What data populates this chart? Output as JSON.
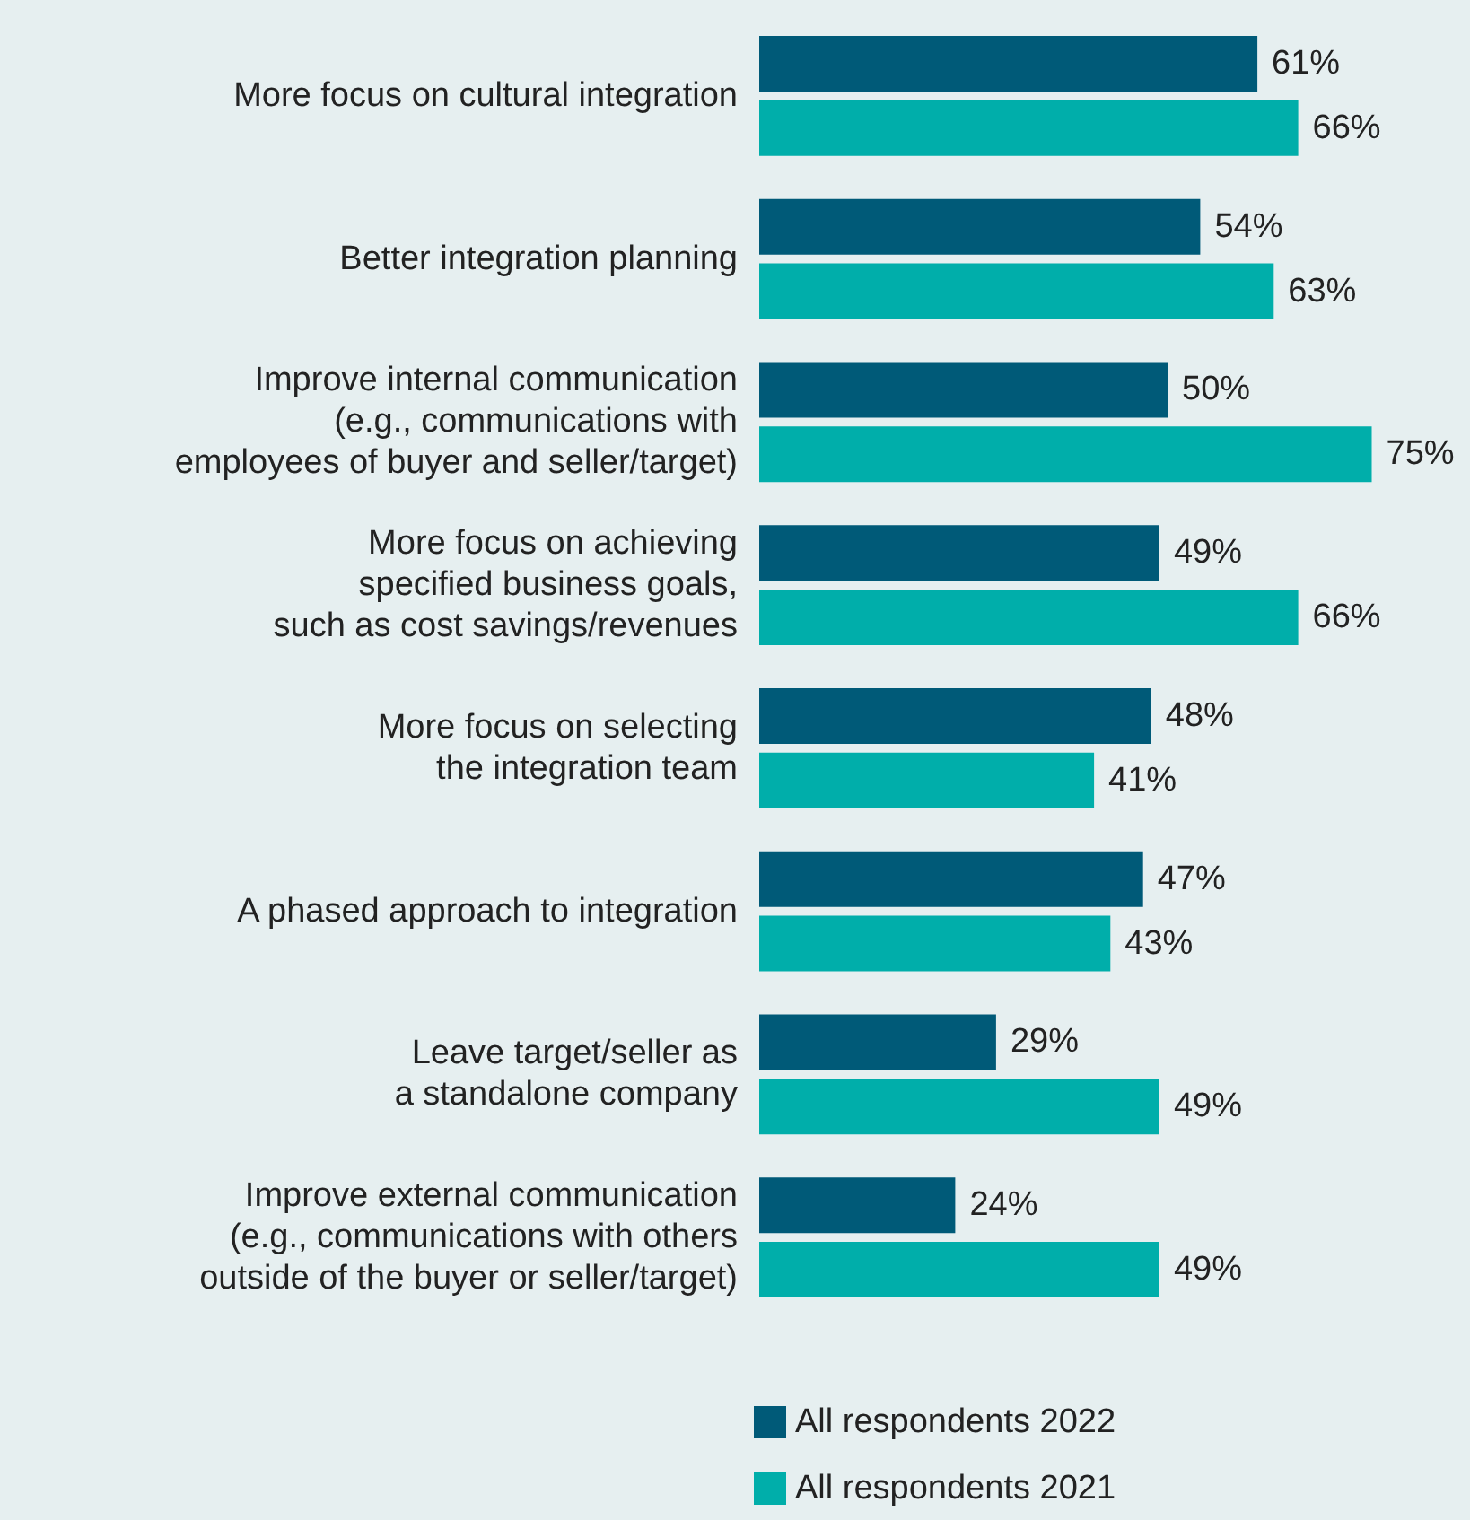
{
  "chart_data": {
    "type": "bar",
    "orientation": "horizontal",
    "legend": "bottom",
    "categories": [
      "More focus on cultural integration",
      "Better integration planning",
      "Improve internal communication\n(e.g., communications with\nemployees of buyer and seller/target)",
      "More focus on achieving\nspecified business goals,\nsuch as cost savings/revenues",
      "More focus on selecting\nthe integration team",
      "A phased approach to integration",
      "Leave target/seller as\na standalone company",
      "Improve external communication\n(e.g., communications with others\noutside of the buyer or seller/target)"
    ],
    "series": [
      {
        "name": "All respondents 2022",
        "color": "#005a78",
        "values": [
          61,
          54,
          50,
          49,
          48,
          47,
          29,
          24
        ],
        "value_labels": [
          "61%",
          "54%",
          "50%",
          "49%",
          "48%",
          "47%",
          "29%",
          "24%"
        ]
      },
      {
        "name": "All respondents 2021",
        "color": "#00aeaa",
        "values": [
          66,
          63,
          75,
          66,
          41,
          43,
          49,
          49
        ],
        "value_labels": [
          "66%",
          "63%",
          "75%",
          "66%",
          "41%",
          "43%",
          "49%",
          "49%"
        ]
      }
    ]
  }
}
